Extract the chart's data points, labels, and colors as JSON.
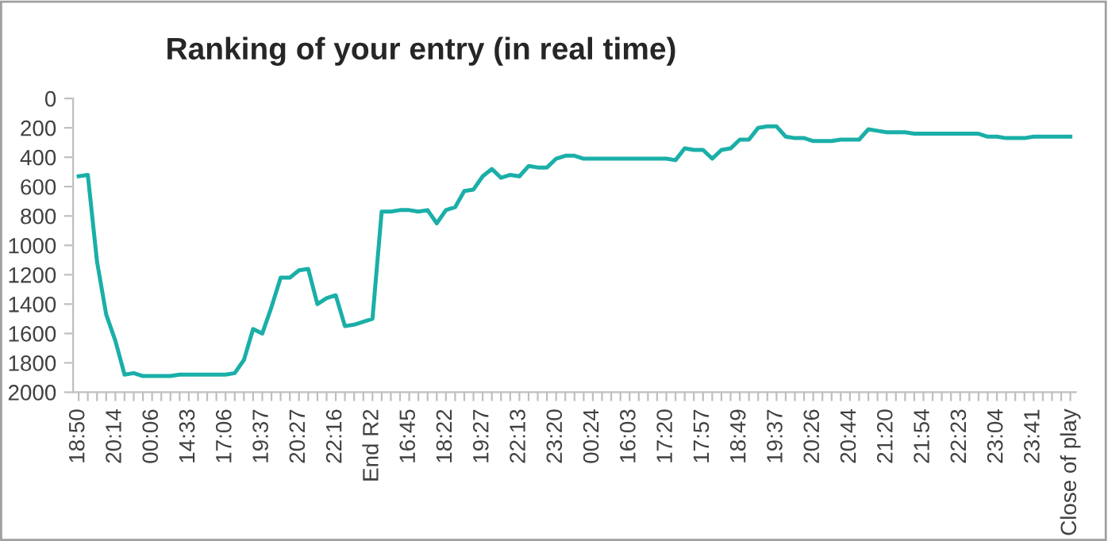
{
  "chart_data": {
    "type": "line",
    "title": "Ranking of your entry (in real time)",
    "categories": [
      "18:50",
      null,
      null,
      null,
      "20:14",
      null,
      null,
      null,
      "00:06",
      null,
      null,
      null,
      "14:33",
      null,
      null,
      null,
      "17:06",
      null,
      null,
      null,
      "19:37",
      null,
      null,
      null,
      "20:27",
      null,
      null,
      null,
      "22:16",
      null,
      null,
      null,
      "End R2",
      null,
      null,
      null,
      "16:45",
      null,
      null,
      null,
      "18:22",
      null,
      null,
      null,
      "19:27",
      null,
      null,
      null,
      "22:13",
      null,
      null,
      null,
      "23:20",
      null,
      null,
      null,
      "00:24",
      null,
      null,
      null,
      "16:03",
      null,
      null,
      null,
      "17:20",
      null,
      null,
      null,
      "17:57",
      null,
      null,
      null,
      "18:49",
      null,
      null,
      null,
      "19:37",
      null,
      null,
      null,
      "20:26",
      null,
      null,
      null,
      "20:44",
      null,
      null,
      null,
      "21:20",
      null,
      null,
      null,
      "21:54",
      null,
      null,
      null,
      "22:23",
      null,
      null,
      null,
      "23:04",
      null,
      null,
      null,
      "23:41",
      null,
      null,
      null,
      "Close of play"
    ],
    "series": [
      {
        "color": "#1aafa8",
        "values": [
          530,
          520,
          1110,
          1470,
          1650,
          1880,
          1870,
          1890,
          1890,
          1890,
          1890,
          1880,
          1880,
          1880,
          1880,
          1880,
          1880,
          1870,
          1780,
          1570,
          1600,
          1420,
          1220,
          1220,
          1170,
          1160,
          1400,
          1360,
          1340,
          1550,
          1540,
          1520,
          1500,
          770,
          770,
          760,
          760,
          770,
          760,
          850,
          760,
          740,
          630,
          620,
          530,
          480,
          540,
          520,
          530,
          460,
          470,
          470,
          410,
          390,
          390,
          410,
          410,
          410,
          410,
          410,
          410,
          410,
          410,
          410,
          410,
          420,
          340,
          350,
          350,
          410,
          350,
          340,
          280,
          280,
          200,
          190,
          190,
          260,
          270,
          270,
          290,
          290,
          290,
          280,
          280,
          280,
          210,
          220,
          230,
          230,
          230,
          240,
          240,
          240,
          240,
          240,
          240,
          240,
          240,
          260,
          260,
          270,
          270,
          270,
          260,
          260,
          260,
          260,
          260
        ]
      }
    ],
    "ylim": [
      2000,
      0
    ],
    "yticks": [
      0,
      200,
      400,
      600,
      800,
      1000,
      1200,
      1400,
      1600,
      1800,
      2000
    ],
    "grid": false,
    "legend": false,
    "marker": "none",
    "line_style": "solid"
  }
}
